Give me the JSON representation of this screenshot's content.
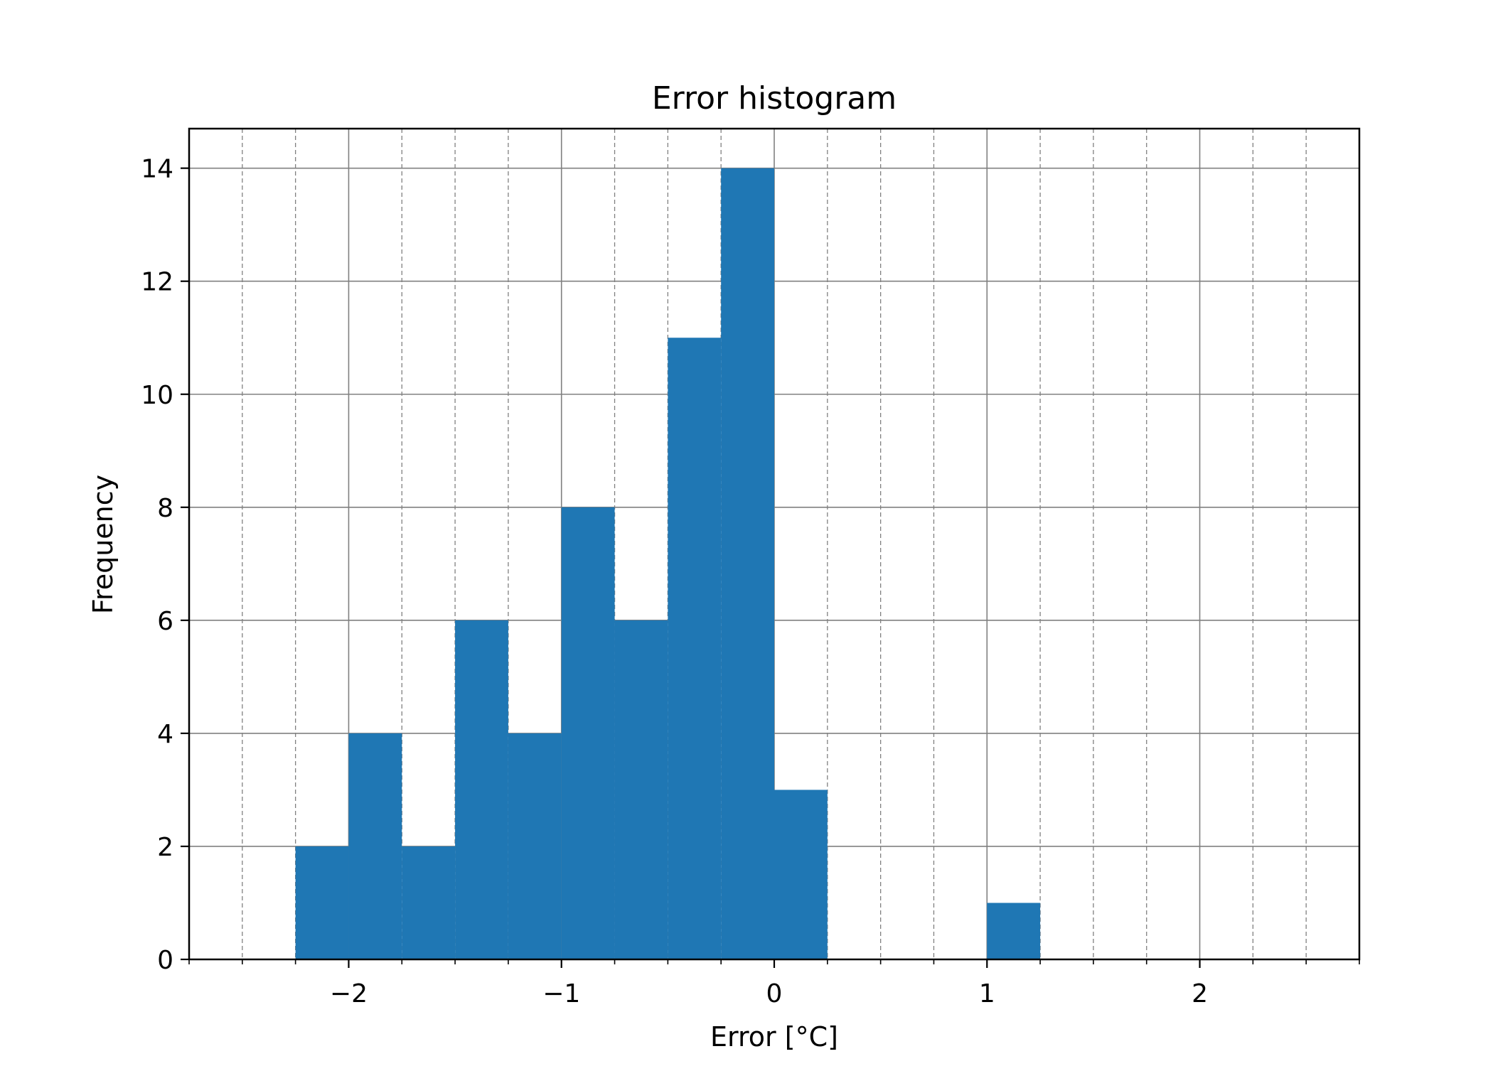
{
  "chart_data": {
    "type": "bar",
    "title": "Error histogram",
    "xlabel": "Error [°C]",
    "ylabel": "Frequency",
    "xlim": [
      -2.75,
      2.75
    ],
    "ylim": [
      0,
      14.7
    ],
    "bin_width": 0.25,
    "bins": [
      {
        "x0": -2.25,
        "x1": -2.0,
        "count": 2
      },
      {
        "x0": -2.0,
        "x1": -1.75,
        "count": 4
      },
      {
        "x0": -1.75,
        "x1": -1.5,
        "count": 2
      },
      {
        "x0": -1.5,
        "x1": -1.25,
        "count": 6
      },
      {
        "x0": -1.25,
        "x1": -1.0,
        "count": 4
      },
      {
        "x0": -1.0,
        "x1": -0.75,
        "count": 8
      },
      {
        "x0": -0.75,
        "x1": -0.5,
        "count": 6
      },
      {
        "x0": -0.5,
        "x1": -0.25,
        "count": 11
      },
      {
        "x0": -0.25,
        "x1": 0.0,
        "count": 14
      },
      {
        "x0": 0.0,
        "x1": 0.25,
        "count": 3
      },
      {
        "x0": 1.0,
        "x1": 1.25,
        "count": 1
      }
    ],
    "x_major_ticks": [
      -2,
      -1,
      0,
      1,
      2
    ],
    "x_major_tick_labels": [
      "−2",
      "−1",
      "0",
      "1",
      "2"
    ],
    "x_minor_ticks": [
      -2.75,
      -2.5,
      -2.25,
      -1.75,
      -1.5,
      -1.25,
      -0.75,
      -0.5,
      -0.25,
      0.25,
      0.5,
      0.75,
      1.25,
      1.5,
      1.75,
      2.25,
      2.5,
      2.75
    ],
    "y_major_ticks": [
      0,
      2,
      4,
      6,
      8,
      10,
      12,
      14
    ],
    "y_major_tick_labels": [
      "0",
      "2",
      "4",
      "6",
      "8",
      "10",
      "12",
      "14"
    ],
    "grid": {
      "major": true,
      "minor": true,
      "minor_style": "dashed"
    },
    "bar_color": "#1f77b4",
    "grid_color": "#808080"
  }
}
